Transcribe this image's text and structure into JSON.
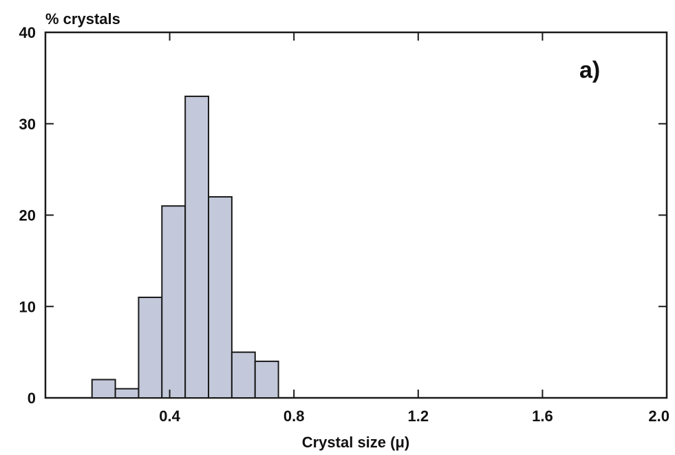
{
  "chart_data": {
    "type": "bar",
    "panel_label": "a)",
    "ylabel": "% crystals",
    "xlabel": "Crystal size (μ)",
    "xlim": [
      0,
      2.0
    ],
    "ylim": [
      0,
      40
    ],
    "x_ticks": [
      "0.4",
      "0.8",
      "1.2",
      "1.6",
      "2.0"
    ],
    "x_tick_values": [
      0.4,
      0.8,
      1.2,
      1.6,
      2.0
    ],
    "y_ticks": [
      "0",
      "10",
      "20",
      "30",
      "40"
    ],
    "y_tick_values": [
      0,
      10,
      20,
      30,
      40
    ],
    "bin_width": 0.075,
    "bins_start": [
      0.15,
      0.225,
      0.3,
      0.375,
      0.45,
      0.525,
      0.6,
      0.675
    ],
    "values": [
      2,
      1,
      11,
      21,
      33,
      22,
      5,
      4
    ],
    "grid": false,
    "bar_color": "#c3c8da",
    "edge_color": "#1a1a1a"
  }
}
